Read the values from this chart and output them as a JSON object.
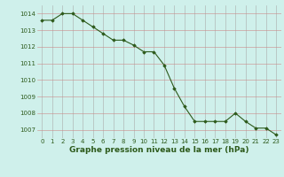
{
  "hours": [
    0,
    1,
    2,
    3,
    4,
    5,
    6,
    7,
    8,
    9,
    10,
    11,
    12,
    13,
    14,
    15,
    16,
    17,
    18,
    19,
    20,
    21,
    22,
    23
  ],
  "pressure": [
    1013.6,
    1013.6,
    1014.0,
    1014.0,
    1013.6,
    1013.2,
    1012.8,
    1012.4,
    1012.4,
    1012.1,
    1011.7,
    1011.7,
    1010.9,
    1009.5,
    1008.4,
    1007.5,
    1007.5,
    1007.5,
    1007.5,
    1008.0,
    1007.5,
    1007.1,
    1007.1,
    1006.7
  ],
  "ylim": [
    1006.5,
    1014.5
  ],
  "yticks": [
    1007,
    1008,
    1009,
    1010,
    1011,
    1012,
    1013,
    1014
  ],
  "xticks": [
    0,
    1,
    2,
    3,
    4,
    5,
    6,
    7,
    8,
    9,
    10,
    11,
    12,
    13,
    14,
    15,
    16,
    17,
    18,
    19,
    20,
    21,
    22,
    23
  ],
  "line_color": "#2d5a1b",
  "marker": "D",
  "marker_size": 1.8,
  "bg_color": "#cff0eb",
  "grid_color_major": "#aaaaaa",
  "grid_color_minor": "#cc8888",
  "xlabel": "Graphe pression niveau de la mer (hPa)",
  "xlabel_color": "#2d5a1b",
  "tick_color": "#2d5a1b",
  "tick_fontsize": 5.0,
  "xlabel_fontsize": 6.5
}
